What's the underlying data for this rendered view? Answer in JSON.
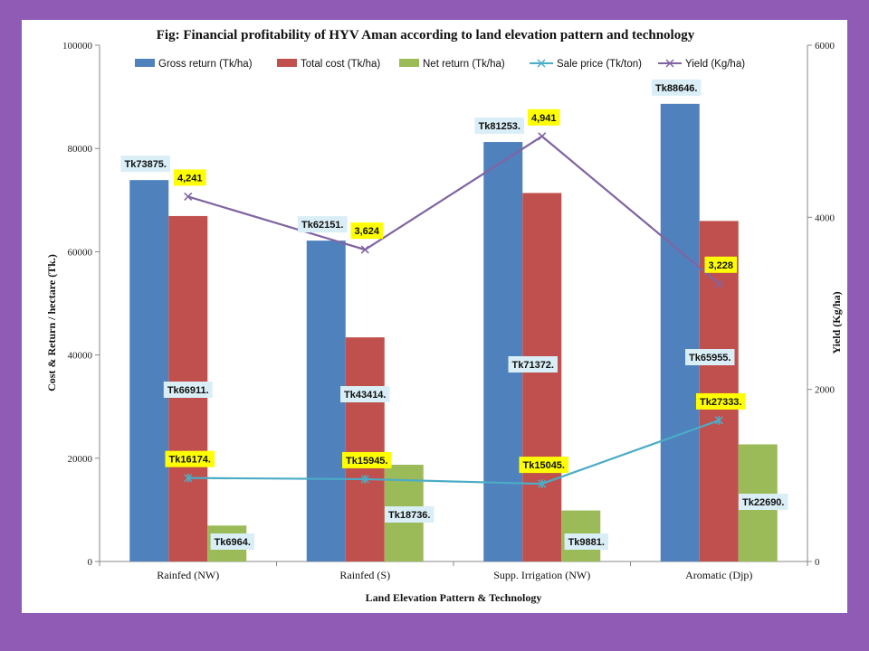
{
  "chart_data": {
    "type": "bar",
    "title": "Fig: Financial profitability of HYV Aman according to land elevation pattern and technology",
    "xlabel": "Land Elevation Pattern & Technology",
    "ylabel": "Cost & Return / hectare (Tk.)",
    "y2label": "Yield (Kg/ha)",
    "ylim": [
      0,
      100000
    ],
    "y2lim": [
      0,
      6000
    ],
    "yticks": [
      "0",
      "20000",
      "40000",
      "60000",
      "80000",
      "100000"
    ],
    "y2ticks": [
      "0",
      "2000",
      "4000",
      "6000"
    ],
    "categories": [
      "Rainfed (NW)",
      "Rainfed (S)",
      "Supp. Irrigation (NW)",
      "Aromatic (Djp)"
    ],
    "legend_position": "top",
    "grid": false,
    "series": [
      {
        "name": "Gross return (Tk/ha)",
        "kind": "bar",
        "axis": "left",
        "color": "#4f81bd",
        "values": [
          73875,
          62151,
          81253,
          88646
        ],
        "labels": [
          "Tk73875.",
          "Tk62151.",
          "Tk81253.",
          "Tk88646."
        ]
      },
      {
        "name": "Total cost (Tk/ha)",
        "kind": "bar",
        "axis": "left",
        "color": "#c0504d",
        "values": [
          66911,
          43414,
          71372,
          65955
        ],
        "labels": [
          "Tk66911.",
          "Tk43414.",
          "Tk71372.",
          "Tk65955."
        ]
      },
      {
        "name": "Net return (Tk/ha)",
        "kind": "bar",
        "axis": "left",
        "color": "#9bbb59",
        "values": [
          6964,
          18736,
          9881,
          22690
        ],
        "labels": [
          "Tk6964.",
          "Tk18736.",
          "Tk9881.",
          "Tk22690."
        ]
      },
      {
        "name": "Sale price (Tk/ton)",
        "kind": "line",
        "axis": "left",
        "color": "#4bacc6",
        "marker": "star",
        "values": [
          16174,
          15945,
          15045,
          27333
        ],
        "labels": [
          "Tk16174.",
          "Tk15945.",
          "Tk15045.",
          "Tk27333."
        ]
      },
      {
        "name": "Yield (Kg/ha)",
        "kind": "line",
        "axis": "right",
        "color": "#8064a2",
        "marker": "x",
        "values": [
          4241,
          3624,
          4941,
          3228
        ],
        "labels": [
          "4,241",
          "3,624",
          "4,941",
          "3,228"
        ]
      }
    ]
  }
}
